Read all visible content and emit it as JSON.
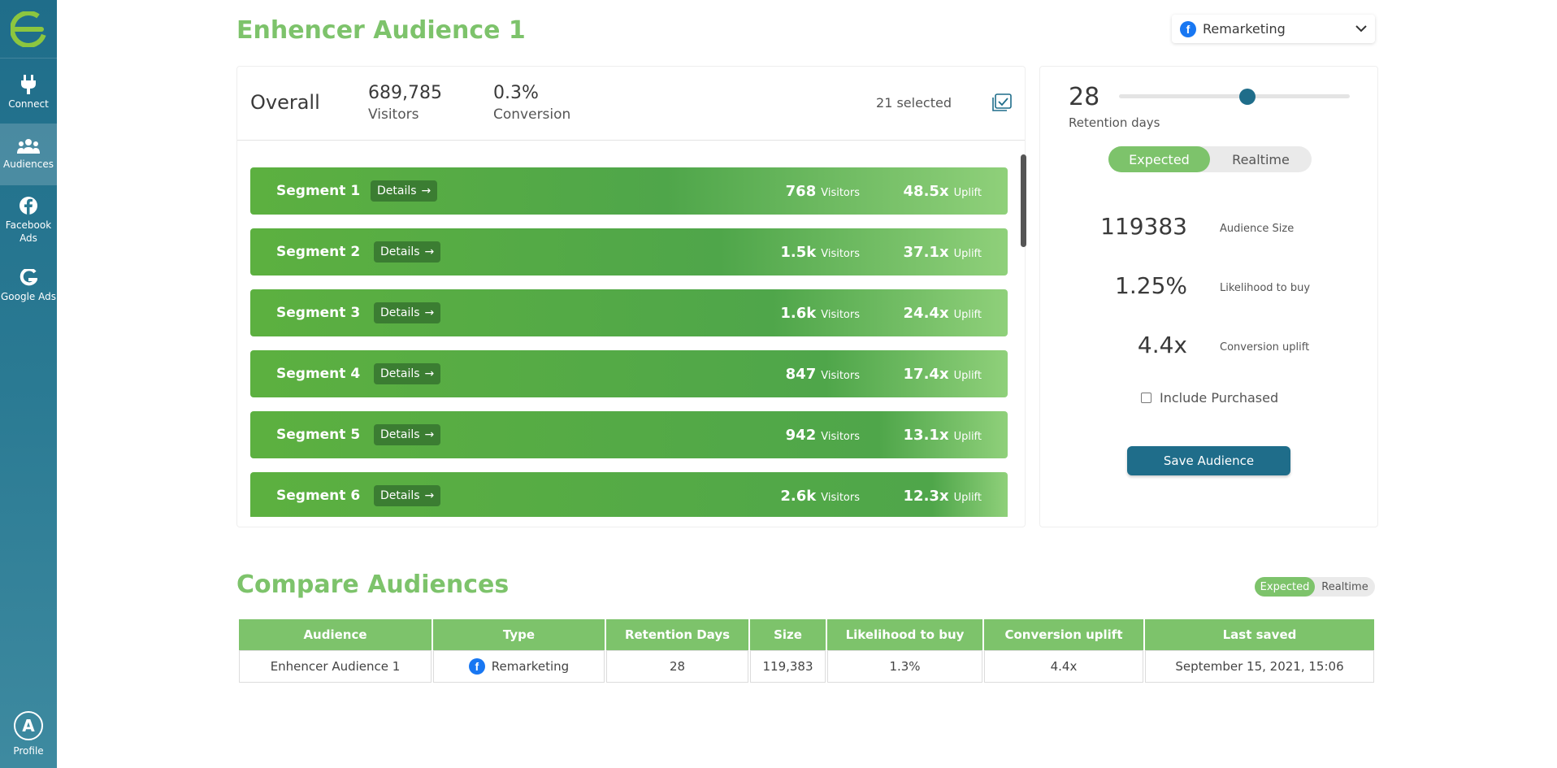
{
  "sidebar": {
    "logo_letter": "e",
    "items": [
      {
        "label": "Connect",
        "icon": "plug-icon"
      },
      {
        "label": "Audiences",
        "icon": "users-icon",
        "active": true
      },
      {
        "label": "Facebook Ads",
        "icon": "facebook-icon"
      },
      {
        "label": "Google Ads",
        "icon": "google-icon"
      }
    ],
    "profile": {
      "initial": "A",
      "label": "Profile"
    }
  },
  "header": {
    "title": "Enhencer Audience 1",
    "audience_type": {
      "selected": "Remarketing",
      "icon": "facebook-icon"
    }
  },
  "overview": {
    "overall_label": "Overall",
    "visitors_value": "689,785",
    "visitors_label": "Visitors",
    "conversion_value": "0.3%",
    "conversion_label": "Conversion",
    "selected_text": "21 selected"
  },
  "segments": [
    {
      "name": "Segment 1",
      "details_label": "Details",
      "visitors": "768",
      "visitors_label": "Visitors",
      "uplift": "48.5x",
      "uplift_label": "Uplift"
    },
    {
      "name": "Segment 2",
      "details_label": "Details",
      "visitors": "1.5k",
      "visitors_label": "Visitors",
      "uplift": "37.1x",
      "uplift_label": "Uplift"
    },
    {
      "name": "Segment 3",
      "details_label": "Details",
      "visitors": "1.6k",
      "visitors_label": "Visitors",
      "uplift": "24.4x",
      "uplift_label": "Uplift"
    },
    {
      "name": "Segment 4",
      "details_label": "Details",
      "visitors": "847",
      "visitors_label": "Visitors",
      "uplift": "17.4x",
      "uplift_label": "Uplift"
    },
    {
      "name": "Segment 5",
      "details_label": "Details",
      "visitors": "942",
      "visitors_label": "Visitors",
      "uplift": "13.1x",
      "uplift_label": "Uplift"
    },
    {
      "name": "Segment 6",
      "details_label": "Details",
      "visitors": "2.6k",
      "visitors_label": "Visitors",
      "uplift": "12.3x",
      "uplift_label": "Uplift"
    }
  ],
  "settings": {
    "retention_days": "28",
    "retention_label": "Retention days",
    "mode_options": [
      "Expected",
      "Realtime"
    ],
    "mode_selected": "Expected",
    "audience_size": "119383",
    "audience_size_label": "Audience Size",
    "likelihood": "1.25%",
    "likelihood_label": "Likelihood to buy",
    "conversion_uplift": "4.4x",
    "conversion_uplift_label": "Conversion uplift",
    "include_purchased_label": "Include Purchased",
    "include_purchased_checked": false,
    "save_label": "Save Audience"
  },
  "compare": {
    "title": "Compare Audiences",
    "mode_options": [
      "Expected",
      "Realtime"
    ],
    "mode_selected": "Expected",
    "columns": [
      "Audience",
      "Type",
      "Retention Days",
      "Size",
      "Likelihood to buy",
      "Conversion uplift",
      "Last saved"
    ],
    "rows": [
      {
        "audience": "Enhencer Audience 1",
        "type": "Remarketing",
        "retention": "28",
        "size": "119,383",
        "likelihood": "1.3%",
        "uplift": "4.4x",
        "last_saved": "September 15, 2021, 15:06"
      }
    ]
  },
  "colors": {
    "brand_green": "#7dc36b",
    "sidebar_teal": "#1f6d8a",
    "save_button": "#1f6d8a",
    "facebook_blue": "#1877f2"
  }
}
